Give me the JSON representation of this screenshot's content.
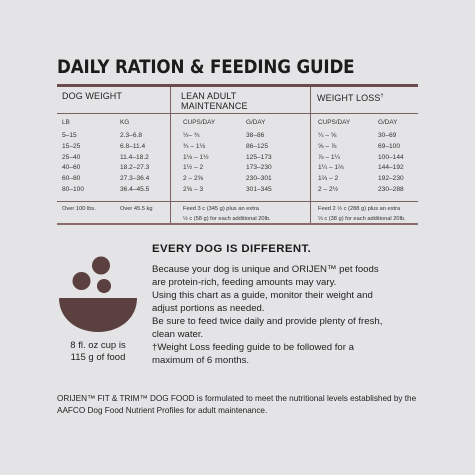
{
  "title": "DAILY RATION & FEEDING GUIDE",
  "table": {
    "headers": {
      "dog_weight": "DOG WEIGHT",
      "lean_adult": "LEAN ADULT\nMAINTENANCE",
      "weight_loss": "WEIGHT LOSS"
    },
    "weight_loss_superscript": "†",
    "subheaders": {
      "lb": "LB",
      "kg": "KG",
      "lean_cups": "CUPS/DAY",
      "lean_g": "G/DAY",
      "loss_cups": "CUPS/DAY",
      "loss_g": "G/DAY"
    },
    "columns": {
      "lb": "5–15\n15–25\n25–40\n40–60\n60–80\n80–100",
      "kg": "2.3–6.8\n6.8–11.4\n11.4–18.2\n18.2–27.3\n27.3–36.4\n36.4–45.5",
      "lean_cups": "½– ¾\n¾ – 1⅛\n1⅛ – 1½\n1½ – 2\n2 – 2⅝\n2⅝ – 3",
      "lean_g": "38–86\n86–125\n125–173\n173–230\n230–301\n301–345",
      "loss_cups": "¼ – ⅝\n⅝ – ⅞\n⅞ – 1¼\n1¼ – 1⅔\n1⅔ – 2\n2 – 2½",
      "loss_g": "30–69\n69–100\n100–144\n144–192\n192–230\n230–288"
    },
    "footer": {
      "lb": "Over 100 lbs.",
      "kg": "Over 45.5 kg",
      "lean_note": "Feed 3 c (345 g) plus an extra\n½ c (58 g) for each additional 20lb.",
      "loss_note": "Feed 2 ½ c (288 g) plus an extra\n⅓ c (38 g) for each additional 20lb."
    }
  },
  "cup_caption": "8 fl. oz cup is\n115 g of food",
  "heading": "EVERY DOG IS DIFFERENT.",
  "paragraphs": [
    "Because your dog is unique and ORIJEN™ pet foods\nare protein-rich, feeding amounts may vary.",
    "Using this chart as a guide, monitor their weight and\nadjust portions as needed.",
    "Be sure to feed twice daily and provide plenty of fresh,\nclean water.",
    "†Weight Loss feeding guide to be followed for a\nmaximum of 6 months."
  ],
  "footer_text": "ORIJEN™ FIT & TRIM™ DOG FOOD is formulated to meet the nutritional levels established by the AAFCO Dog Food Nutrient Profiles for adult maintenance.",
  "colors": {
    "accent": "#6b4b4b",
    "icon": "#5a4140",
    "background": "#e4e4e6"
  }
}
